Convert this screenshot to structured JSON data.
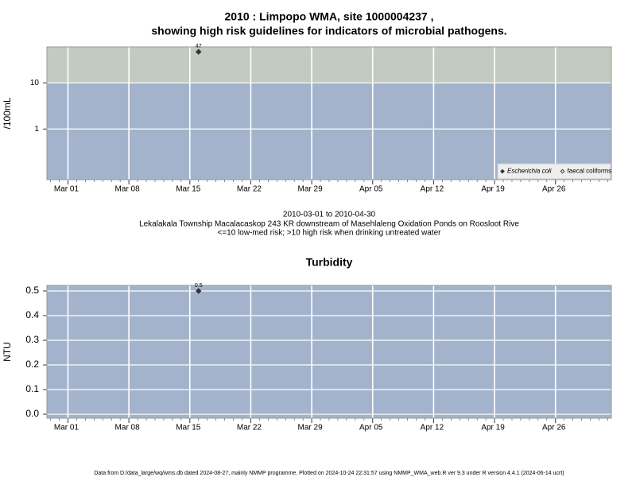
{
  "chart_data": [
    {
      "type": "scatter",
      "title": "2010 : Limpopo WMA, site 1000004237 ,",
      "subtitle": "showing high risk guidelines for indicators of microbial pathogens.",
      "ylabel": "/100mL",
      "log_y": true,
      "ylim": [
        0.08,
        60
      ],
      "yticks": [
        1,
        10
      ],
      "xlim": [
        "2010-02-26T14:00Z",
        "2010-05-02T10:00Z"
      ],
      "xticks": [
        {
          "value": "2010-03-01",
          "label": "Mar 01"
        },
        {
          "value": "2010-03-08",
          "label": "Mar 08"
        },
        {
          "value": "2010-03-15",
          "label": "Mar 15"
        },
        {
          "value": "2010-03-22",
          "label": "Mar 22"
        },
        {
          "value": "2010-03-29",
          "label": "Mar 29"
        },
        {
          "value": "2010-04-05",
          "label": "Apr 05"
        },
        {
          "value": "2010-04-12",
          "label": "Apr 12"
        },
        {
          "value": "2010-04-19",
          "label": "Apr 19"
        },
        {
          "value": "2010-04-26",
          "label": "Apr 26"
        }
      ],
      "grid": true,
      "risk_threshold": 10,
      "band_colors": [
        "#a3b3cc",
        "#c3cbc1"
      ],
      "legend": "bottom-right",
      "series": [
        {
          "name": "Escherichia coli",
          "color": "#333333",
          "marker_filled": true,
          "x": [
            "2010-03-16"
          ],
          "values": [
            47
          ]
        },
        {
          "name": "faecal coliforms",
          "color": "#333333",
          "marker_filled": false,
          "x": [],
          "values": []
        }
      ],
      "annotations": [
        "2010-03-01 to 2010-04-30",
        "Lekalakala Township Macalacaskop 243 KR downstream of Masehlaleng Oxidation Ponds on Roosloot Rive",
        "<=10 low-med risk; >10 high risk when drinking untreated water"
      ]
    },
    {
      "type": "scatter",
      "title": "Turbidity",
      "ylabel": "NTU",
      "log_y": false,
      "ylim": [
        -0.016,
        0.5226
      ],
      "yticks": [
        {
          "value": 0,
          "label": "0.0"
        },
        0.1,
        0.2,
        0.3,
        0.4,
        0.5
      ],
      "xlim": [
        "2010-02-26T14:00Z",
        "2010-05-02T10:00Z"
      ],
      "xticks": [
        {
          "value": "2010-03-01",
          "label": "Mar 01"
        },
        {
          "value": "2010-03-08",
          "label": "Mar 08"
        },
        {
          "value": "2010-03-15",
          "label": "Mar 15"
        },
        {
          "value": "2010-03-22",
          "label": "Mar 22"
        },
        {
          "value": "2010-03-29",
          "label": "Mar 29"
        },
        {
          "value": "2010-04-05",
          "label": "Apr 05"
        },
        {
          "value": "2010-04-12",
          "label": "Apr 12"
        },
        {
          "value": "2010-04-19",
          "label": "Apr 19"
        },
        {
          "value": "2010-04-26",
          "label": "Apr 26"
        }
      ],
      "grid": true,
      "background": "#a3b3cc",
      "series": [
        {
          "color": "#333333",
          "marker_filled": true,
          "x": [
            "2010-03-16"
          ],
          "values": [
            0.5
          ]
        }
      ]
    }
  ],
  "footer": "Data from D:/data_large/wq/wms.db dated 2024-08-27, mainly NMMP programme. Plotted on 2024-10-24 22:31:57 using NMMP_WMA_web.R ver 9.3 under R version 4.4.1 (2024-06-14 ucrt)"
}
